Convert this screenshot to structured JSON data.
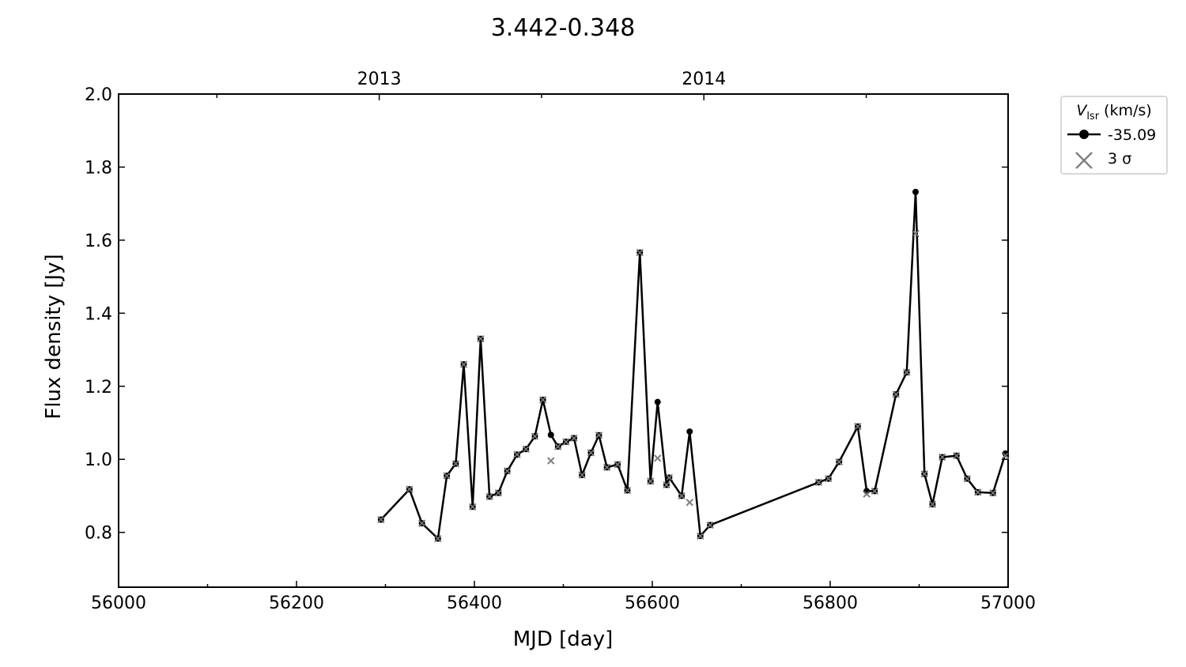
{
  "chart_data": {
    "type": "line",
    "title": "3.442-0.348",
    "xlabel": "MJD [day]",
    "ylabel": "Flux density [Jy]",
    "xlim": [
      56000,
      57000
    ],
    "ylim": [
      0.65,
      2.0
    ],
    "x_ticks": [
      56000,
      56200,
      56400,
      56600,
      56800,
      57000
    ],
    "x_tick_labels": [
      "56000",
      "56200",
      "56400",
      "56600",
      "56800",
      "57000"
    ],
    "y_ticks": [
      0.8,
      1.0,
      1.2,
      1.4,
      1.6,
      1.8,
      2.0
    ],
    "y_tick_labels": [
      "0.8",
      "1.0",
      "1.2",
      "1.4",
      "1.6",
      "1.8",
      "2.0"
    ],
    "top_axis": {
      "ticks": [
        56293,
        56658
      ],
      "labels": [
        "2013",
        "2014"
      ]
    },
    "grid": false,
    "legend": {
      "placement": "outside-top-right",
      "title_symbol": "V",
      "title_subscript": "lsr",
      "title_unit": "(km/s)",
      "entries": [
        "-35.09",
        "3 σ"
      ]
    },
    "series": [
      {
        "name": "-35.09",
        "color": "#000000",
        "marker": "circle",
        "x": [
          56295,
          56327,
          56341,
          56359,
          56369,
          56379,
          56388,
          56398,
          56407,
          56417,
          56427,
          56437,
          56448,
          56458,
          56468,
          56477,
          56486,
          56494,
          56503,
          56512,
          56521,
          56531,
          56540,
          56549,
          56561,
          56572,
          56586,
          56598,
          56606,
          56616,
          56619,
          56633,
          56642,
          56654,
          56665,
          56787,
          56798,
          56810,
          56831,
          56841,
          56850,
          56874,
          56886,
          56896,
          56906,
          56915,
          56926,
          56942,
          56954,
          56966,
          56983,
          56997
        ],
        "y": [
          0.835,
          0.918,
          0.825,
          0.783,
          0.955,
          0.988,
          1.26,
          0.87,
          1.33,
          0.898,
          0.908,
          0.968,
          1.013,
          1.028,
          1.063,
          1.163,
          1.067,
          1.035,
          1.048,
          1.058,
          0.957,
          1.018,
          1.066,
          0.978,
          0.986,
          0.915,
          1.566,
          0.94,
          1.157,
          0.93,
          0.95,
          0.9,
          1.076,
          0.79,
          0.82,
          0.937,
          0.947,
          0.993,
          1.09,
          0.913,
          0.913,
          1.178,
          1.238,
          1.732,
          0.96,
          0.877,
          1.006,
          1.01,
          0.947,
          0.91,
          0.908,
          1.016
        ]
      },
      {
        "name": "3 σ",
        "color": "#808080",
        "marker": "x",
        "x": [
          56295,
          56327,
          56341,
          56359,
          56369,
          56379,
          56388,
          56398,
          56407,
          56417,
          56427,
          56437,
          56448,
          56458,
          56468,
          56477,
          56486,
          56494,
          56503,
          56512,
          56521,
          56531,
          56540,
          56549,
          56561,
          56572,
          56586,
          56598,
          56606,
          56616,
          56619,
          56633,
          56642,
          56654,
          56665,
          56787,
          56798,
          56810,
          56831,
          56841,
          56850,
          56874,
          56886,
          56896,
          56906,
          56915,
          56926,
          56942,
          56954,
          56966,
          56983,
          56997
        ],
        "y": [
          0.835,
          0.918,
          0.825,
          0.783,
          0.955,
          0.988,
          1.26,
          0.87,
          1.33,
          0.898,
          0.908,
          0.968,
          1.013,
          1.028,
          1.063,
          1.163,
          0.996,
          1.035,
          1.048,
          1.058,
          0.957,
          1.018,
          1.066,
          0.978,
          0.986,
          0.915,
          1.566,
          0.94,
          1.003,
          0.93,
          0.95,
          0.9,
          0.882,
          0.79,
          0.82,
          0.937,
          0.947,
          0.993,
          1.09,
          0.905,
          0.913,
          1.178,
          1.238,
          1.618,
          0.96,
          0.877,
          1.006,
          1.01,
          0.947,
          0.91,
          0.908,
          1.01
        ]
      }
    ]
  }
}
